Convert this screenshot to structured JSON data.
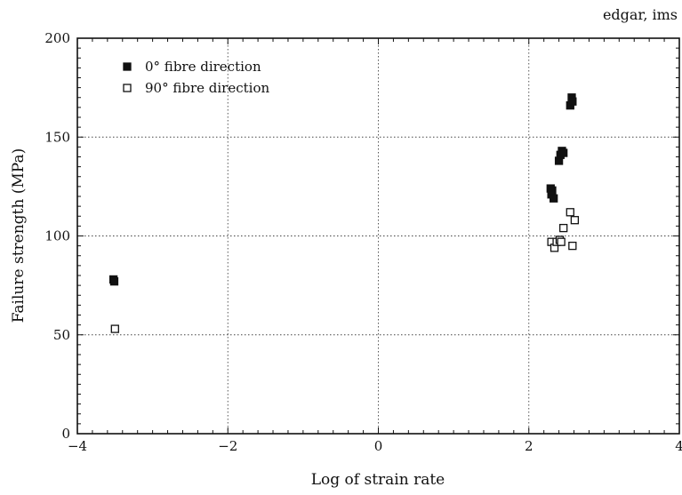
{
  "chart_data": {
    "type": "scatter",
    "corner_label": "edgar, ims",
    "xlabel": "Log of strain rate",
    "ylabel": "Failure strength (MPa)",
    "xlim": [
      -4,
      4
    ],
    "ylim": [
      0,
      200
    ],
    "x_ticks": [
      -4,
      -2,
      0,
      2,
      4
    ],
    "y_ticks": [
      0,
      50,
      100,
      150,
      200
    ],
    "x_tick_labels": [
      "−4",
      "−2",
      "0",
      "2",
      "4"
    ],
    "y_tick_labels": [
      "0",
      "50",
      "100",
      "150",
      "200"
    ],
    "grid": true,
    "legend_position": "top-left",
    "series": [
      {
        "name": "0° fibre direction",
        "marker": "filled-square",
        "color": "#111111",
        "points": [
          [
            -3.52,
            78
          ],
          [
            -3.51,
            77
          ],
          [
            2.29,
            124
          ],
          [
            2.31,
            123
          ],
          [
            2.3,
            121
          ],
          [
            2.33,
            119
          ],
          [
            2.4,
            138
          ],
          [
            2.42,
            141
          ],
          [
            2.44,
            143
          ],
          [
            2.46,
            142
          ],
          [
            2.55,
            166
          ],
          [
            2.57,
            170
          ],
          [
            2.58,
            168
          ]
        ]
      },
      {
        "name": "90° fibre direction",
        "marker": "open-square",
        "color": "#111111",
        "points": [
          [
            -3.5,
            53
          ],
          [
            2.3,
            97
          ],
          [
            2.34,
            94
          ],
          [
            2.37,
            97
          ],
          [
            2.41,
            98
          ],
          [
            2.43,
            97
          ],
          [
            2.46,
            104
          ],
          [
            2.55,
            112
          ],
          [
            2.58,
            95
          ],
          [
            2.61,
            108
          ]
        ]
      }
    ]
  }
}
